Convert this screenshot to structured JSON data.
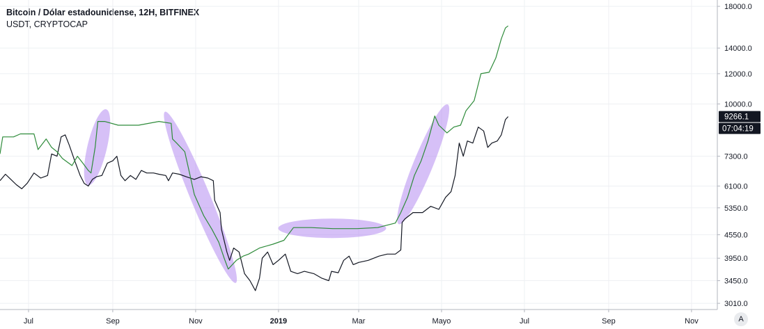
{
  "chart_data": {
    "type": "line",
    "title": "Bitcoin / Dólar estadounidense, 12H, BITFINEX",
    "subtitle": "USDT, CRYPTOCAP",
    "log_scale": true,
    "ylim": [
      2900,
      18700
    ],
    "xlim": [
      "2018-06-10",
      "2019-11-20"
    ],
    "x_ticks": [
      {
        "date": "2018-07-01",
        "label": "Jul",
        "bold": false
      },
      {
        "date": "2018-09-01",
        "label": "Sep",
        "bold": false
      },
      {
        "date": "2018-11-01",
        "label": "Nov",
        "bold": false
      },
      {
        "date": "2019-01-01",
        "label": "2019",
        "bold": true
      },
      {
        "date": "2019-03-01",
        "label": "Mar",
        "bold": false
      },
      {
        "date": "2019-05-01",
        "label": "Mayo",
        "bold": false
      },
      {
        "date": "2019-07-01",
        "label": "Jul",
        "bold": false
      },
      {
        "date": "2019-09-01",
        "label": "Sep",
        "bold": false
      },
      {
        "date": "2019-11-01",
        "label": "Nov",
        "bold": false
      }
    ],
    "y_ticks": [
      "18000.0",
      "14000.0",
      "12000.0",
      "10000.0",
      "7300.0",
      "6100.0",
      "5350.0",
      "4550.0",
      "3950.0",
      "3450.0",
      "3010.0"
    ],
    "grid": true,
    "price_badge": "9266.1",
    "countdown_badge": "07:04:19",
    "series": [
      {
        "color": "#131722",
        "points": [
          [
            "2018-06-10",
            6300
          ],
          [
            "2018-06-14",
            6550
          ],
          [
            "2018-06-18",
            6350
          ],
          [
            "2018-06-22",
            6150
          ],
          [
            "2018-06-26",
            6000
          ],
          [
            "2018-06-30",
            6200
          ],
          [
            "2018-07-05",
            6600
          ],
          [
            "2018-07-10",
            6400
          ],
          [
            "2018-07-15",
            6500
          ],
          [
            "2018-07-18",
            7400
          ],
          [
            "2018-07-22",
            7300
          ],
          [
            "2018-07-25",
            8200
          ],
          [
            "2018-07-28",
            8300
          ],
          [
            "2018-07-31",
            7800
          ],
          [
            "2018-08-04",
            7100
          ],
          [
            "2018-08-08",
            6500
          ],
          [
            "2018-08-11",
            6200
          ],
          [
            "2018-08-14",
            6100
          ],
          [
            "2018-08-17",
            6350
          ],
          [
            "2018-08-20",
            6450
          ],
          [
            "2018-08-24",
            6500
          ],
          [
            "2018-08-28",
            7000
          ],
          [
            "2018-09-01",
            7100
          ],
          [
            "2018-09-04",
            7300
          ],
          [
            "2018-09-07",
            6500
          ],
          [
            "2018-09-10",
            6300
          ],
          [
            "2018-09-14",
            6500
          ],
          [
            "2018-09-18",
            6350
          ],
          [
            "2018-09-22",
            6700
          ],
          [
            "2018-09-26",
            6600
          ],
          [
            "2018-10-01",
            6600
          ],
          [
            "2018-10-05",
            6550
          ],
          [
            "2018-10-10",
            6500
          ],
          [
            "2018-10-12",
            6300
          ],
          [
            "2018-10-15",
            6600
          ],
          [
            "2018-10-20",
            6550
          ],
          [
            "2018-10-25",
            6450
          ],
          [
            "2018-10-31",
            6350
          ],
          [
            "2018-11-05",
            6450
          ],
          [
            "2018-11-10",
            6400
          ],
          [
            "2018-11-14",
            6300
          ],
          [
            "2018-11-15",
            5600
          ],
          [
            "2018-11-19",
            5200
          ],
          [
            "2018-11-20",
            4700
          ],
          [
            "2018-11-24",
            4100
          ],
          [
            "2018-11-26",
            3900
          ],
          [
            "2018-11-29",
            4200
          ],
          [
            "2018-12-03",
            4100
          ],
          [
            "2018-12-07",
            3600
          ],
          [
            "2018-12-11",
            3450
          ],
          [
            "2018-12-15",
            3250
          ],
          [
            "2018-12-18",
            3500
          ],
          [
            "2018-12-20",
            3950
          ],
          [
            "2018-12-24",
            4100
          ],
          [
            "2018-12-28",
            3800
          ],
          [
            "2019-01-01",
            3900
          ],
          [
            "2019-01-06",
            4050
          ],
          [
            "2019-01-10",
            3650
          ],
          [
            "2019-01-15",
            3600
          ],
          [
            "2019-01-20",
            3650
          ],
          [
            "2019-01-27",
            3600
          ],
          [
            "2019-02-02",
            3500
          ],
          [
            "2019-02-07",
            3450
          ],
          [
            "2019-02-09",
            3650
          ],
          [
            "2019-02-14",
            3620
          ],
          [
            "2019-02-18",
            3900
          ],
          [
            "2019-02-22",
            4000
          ],
          [
            "2019-02-25",
            3800
          ],
          [
            "2019-03-01",
            3850
          ],
          [
            "2019-03-08",
            3900
          ],
          [
            "2019-03-16",
            4000
          ],
          [
            "2019-03-22",
            4050
          ],
          [
            "2019-03-28",
            4050
          ],
          [
            "2019-04-01",
            4150
          ],
          [
            "2019-04-02",
            4900
          ],
          [
            "2019-04-04",
            5000
          ],
          [
            "2019-04-10",
            5200
          ],
          [
            "2019-04-17",
            5200
          ],
          [
            "2019-04-23",
            5400
          ],
          [
            "2019-04-29",
            5300
          ],
          [
            "2019-05-04",
            5700
          ],
          [
            "2019-05-08",
            5900
          ],
          [
            "2019-05-11",
            6500
          ],
          [
            "2019-05-14",
            7900
          ],
          [
            "2019-05-17",
            7300
          ],
          [
            "2019-05-20",
            8000
          ],
          [
            "2019-05-24",
            7900
          ],
          [
            "2019-05-28",
            8700
          ],
          [
            "2019-06-01",
            8500
          ],
          [
            "2019-06-04",
            7700
          ],
          [
            "2019-06-07",
            7900
          ],
          [
            "2019-06-11",
            8000
          ],
          [
            "2019-06-14",
            8300
          ],
          [
            "2019-06-17",
            9100
          ],
          [
            "2019-06-19",
            9266
          ]
        ]
      },
      {
        "color": "#2e8b3a",
        "points": [
          [
            "2018-06-10",
            7400
          ],
          [
            "2018-06-12",
            8200
          ],
          [
            "2018-06-20",
            8200
          ],
          [
            "2018-06-25",
            8350
          ],
          [
            "2018-07-05",
            8350
          ],
          [
            "2018-07-08",
            7600
          ],
          [
            "2018-07-14",
            8100
          ],
          [
            "2018-07-18",
            7700
          ],
          [
            "2018-07-22",
            7500
          ],
          [
            "2018-07-26",
            7200
          ],
          [
            "2018-08-02",
            6900
          ],
          [
            "2018-08-06",
            7300
          ],
          [
            "2018-08-10",
            7000
          ],
          [
            "2018-08-14",
            6700
          ],
          [
            "2018-08-16",
            6600
          ],
          [
            "2018-08-19",
            7700
          ],
          [
            "2018-08-21",
            9000
          ],
          [
            "2018-08-26",
            9000
          ],
          [
            "2018-09-05",
            8800
          ],
          [
            "2018-09-20",
            8800
          ],
          [
            "2018-10-05",
            9000
          ],
          [
            "2018-10-14",
            8900
          ],
          [
            "2018-10-15",
            8100
          ],
          [
            "2018-10-18",
            7900
          ],
          [
            "2018-10-24",
            7500
          ],
          [
            "2018-10-31",
            5800
          ],
          [
            "2018-11-07",
            5100
          ],
          [
            "2018-11-13",
            4700
          ],
          [
            "2018-11-18",
            4350
          ],
          [
            "2018-11-22",
            3950
          ],
          [
            "2018-11-25",
            3700
          ],
          [
            "2018-12-01",
            3900
          ],
          [
            "2018-12-06",
            4000
          ],
          [
            "2018-12-10",
            4050
          ],
          [
            "2018-12-18",
            4200
          ],
          [
            "2018-12-28",
            4300
          ],
          [
            "2019-01-05",
            4400
          ],
          [
            "2019-01-12",
            4750
          ],
          [
            "2019-01-25",
            4750
          ],
          [
            "2019-02-10",
            4720
          ],
          [
            "2019-02-28",
            4720
          ],
          [
            "2019-03-15",
            4750
          ],
          [
            "2019-03-28",
            4880
          ],
          [
            "2019-04-01",
            5200
          ],
          [
            "2019-04-06",
            5700
          ],
          [
            "2019-04-11",
            6500
          ],
          [
            "2019-04-16",
            7100
          ],
          [
            "2019-04-21",
            8000
          ],
          [
            "2019-04-26",
            9300
          ],
          [
            "2019-04-29",
            8800
          ],
          [
            "2019-05-05",
            8400
          ],
          [
            "2019-05-10",
            8700
          ],
          [
            "2019-05-15",
            8800
          ],
          [
            "2019-05-19",
            9600
          ],
          [
            "2019-05-25",
            10200
          ],
          [
            "2019-05-30",
            12000
          ],
          [
            "2019-06-05",
            12100
          ],
          [
            "2019-06-10",
            13200
          ],
          [
            "2019-06-14",
            14800
          ],
          [
            "2019-06-17",
            15800
          ],
          [
            "2019-06-19",
            16000
          ]
        ]
      }
    ],
    "highlights": [
      {
        "color": "#b48cf0",
        "from": [
          "2018-08-16",
          6600
        ],
        "to": [
          "2018-08-25",
          9000
        ]
      },
      {
        "color": "#b48cf0",
        "from": [
          "2018-10-13",
          8900
        ],
        "to": [
          "2018-11-27",
          3650
        ]
      },
      {
        "color": "#b48cf0",
        "from": [
          "2019-01-10",
          4730
        ],
        "to": [
          "2019-03-12",
          4730
        ]
      },
      {
        "color": "#b48cf0",
        "from": [
          "2019-04-03",
          5200
        ],
        "to": [
          "2019-05-02",
          9300
        ]
      }
    ]
  },
  "ui": {
    "auto_scale_label": "A"
  }
}
